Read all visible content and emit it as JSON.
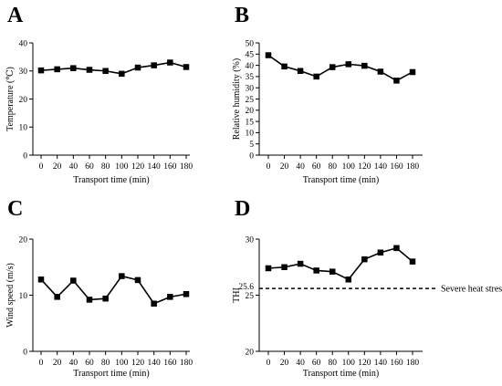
{
  "chart_data": [
    {
      "type": "line",
      "panel": "A",
      "x": [
        0,
        20,
        40,
        60,
        80,
        100,
        120,
        140,
        160,
        180
      ],
      "xticks": [
        0,
        20,
        40,
        60,
        80,
        100,
        120,
        140,
        160,
        180
      ],
      "xlabel": "Transport time  (min)",
      "ylabel": "Temperature (℃)",
      "ylim": [
        0,
        40
      ],
      "yticks": [
        0,
        10,
        20,
        30,
        40
      ],
      "series": [
        {
          "values": [
            30.2,
            30.6,
            31.0,
            30.4,
            30.0,
            29.0,
            31.2,
            32.0,
            33.0,
            31.4
          ]
        }
      ]
    },
    {
      "type": "line",
      "panel": "B",
      "x": [
        0,
        20,
        40,
        60,
        80,
        100,
        120,
        140,
        160,
        180
      ],
      "xticks": [
        0,
        20,
        40,
        60,
        80,
        100,
        120,
        140,
        160,
        180
      ],
      "xlabel": "Transport time (min)",
      "ylabel": "Relative humidity (%)",
      "ylim": [
        0,
        50
      ],
      "yticks": [
        0,
        5,
        10,
        15,
        20,
        25,
        30,
        35,
        40,
        45,
        50
      ],
      "series": [
        {
          "values": [
            44.5,
            39.5,
            37.5,
            35.0,
            39.2,
            40.5,
            39.8,
            37.2,
            33.2,
            37.0
          ]
        }
      ]
    },
    {
      "type": "line",
      "panel": "C",
      "x": [
        0,
        20,
        40,
        60,
        80,
        100,
        120,
        140,
        160,
        180
      ],
      "xticks": [
        0,
        20,
        40,
        60,
        80,
        100,
        120,
        140,
        160,
        180
      ],
      "xlabel": "Transport time (min)",
      "ylabel": "Wind speed (m/s)",
      "ylim": [
        0,
        20
      ],
      "yticks": [
        0,
        10,
        20
      ],
      "series": [
        {
          "values": [
            12.8,
            9.7,
            12.6,
            9.2,
            9.4,
            13.4,
            12.7,
            8.5,
            9.7,
            10.2
          ]
        }
      ]
    },
    {
      "type": "line",
      "panel": "D",
      "x": [
        0,
        20,
        40,
        60,
        80,
        100,
        120,
        140,
        160,
        180
      ],
      "xticks": [
        0,
        20,
        40,
        60,
        80,
        100,
        120,
        140,
        160,
        180
      ],
      "xlabel": "Transport time (min)",
      "ylabel": "THI",
      "ylim": [
        20,
        30
      ],
      "yticks": [
        20,
        25,
        30
      ],
      "extra_ytick": "25.6",
      "reference_line": {
        "y": 25.6,
        "label": "Severe heat stress",
        "style": "dashed"
      },
      "series": [
        {
          "values": [
            27.4,
            27.5,
            27.8,
            27.2,
            27.1,
            26.4,
            28.2,
            28.8,
            29.2,
            28.0
          ]
        }
      ]
    }
  ]
}
